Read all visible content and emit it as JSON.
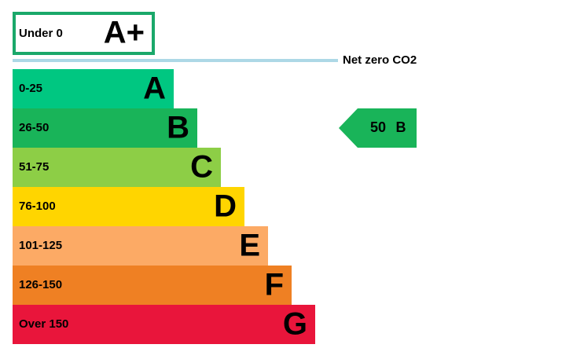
{
  "top_band": {
    "range": "Under 0",
    "letter": "A+"
  },
  "net_zero_label": "Net zero CO2",
  "bands": [
    {
      "range": "0-25",
      "letter": "A",
      "color": "#00c781"
    },
    {
      "range": "26-50",
      "letter": "B",
      "color": "#19b459"
    },
    {
      "range": "51-75",
      "letter": "C",
      "color": "#8dce46"
    },
    {
      "range": "76-100",
      "letter": "D",
      "color": "#ffd500"
    },
    {
      "range": "101-125",
      "letter": "E",
      "color": "#fcaa65"
    },
    {
      "range": "126-150",
      "letter": "F",
      "color": "#ef8023"
    },
    {
      "range": "Over 150",
      "letter": "G",
      "color": "#e9153b"
    }
  ],
  "current": {
    "score": 50,
    "letter": "B",
    "color": "#19b459"
  }
}
